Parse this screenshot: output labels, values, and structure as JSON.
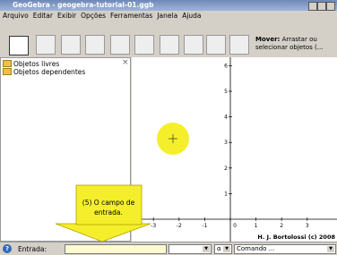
{
  "window": {
    "title": "GeoGebra - geogebra-tutorial-01.ggb"
  },
  "menu": [
    "Arquivo",
    "Editar",
    "Exibir",
    "Opções",
    "Ferramentas",
    "Janela",
    "Ajuda"
  ],
  "toolbar": {
    "help_title": "Mover:",
    "help_line1": "Arrastar ou",
    "help_line2": "selecionar objetos (..."
  },
  "algebra_view": {
    "folders": [
      "Objetos livres",
      "Objetos dependentes"
    ],
    "close": "×"
  },
  "graphics_view": {
    "x_ticks": [
      -3,
      -2,
      -1,
      0,
      1,
      2,
      3
    ],
    "y_ticks": [
      1,
      2,
      3,
      4,
      5,
      6
    ],
    "credit": "H. J. Bortolossi (c) 2008"
  },
  "callout": {
    "lines": [
      "(5) O campo de",
      "entrada."
    ]
  },
  "input_bar": {
    "help": "?",
    "label": "Entrada:",
    "symbol": "α",
    "command": "Comando ..."
  }
}
